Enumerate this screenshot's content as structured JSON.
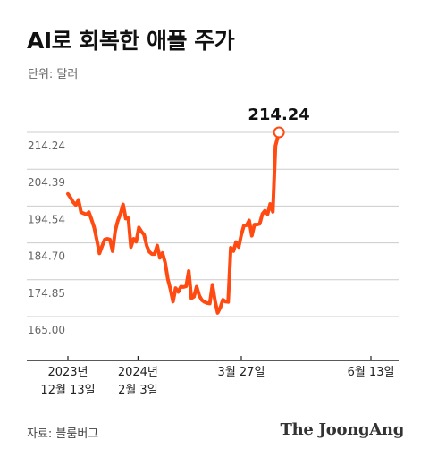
{
  "header": {
    "title": "AI로 회복한 애플 주가",
    "unit": "단위: 달러"
  },
  "footer": {
    "source": "자료: 블룸버그",
    "brand": "The JoongAng"
  },
  "colors": {
    "line": "#ff4a12",
    "grid": "#cccccc",
    "axis": "#222222",
    "tick_text": "#666666"
  },
  "chart_data": {
    "type": "line",
    "title": "AI로 회복한 애플 주가",
    "ylabel": "단위: 달러",
    "ylim": [
      165.0,
      214.24
    ],
    "y_ticks": [
      "214.24",
      "204.39",
      "194.54",
      "184.70",
      "174.85",
      "165.00"
    ],
    "y_tick_values": [
      214.24,
      204.39,
      194.54,
      184.7,
      174.85,
      165.0
    ],
    "x_ticks": [
      {
        "x": 0,
        "lines": [
          "2023년",
          "12월 13일"
        ]
      },
      {
        "x": 80,
        "lines": [
          "2024년",
          "2월 3일"
        ]
      },
      {
        "x": 198,
        "lines": [
          "3월 27일"
        ]
      },
      {
        "x": 346,
        "lines": [
          "6월 13일"
        ]
      }
    ],
    "end_label": "214.24",
    "x_range": [
      0,
      346
    ],
    "series": [
      {
        "values": [
          [
            0,
            197.8
          ],
          [
            3,
            196.8
          ],
          [
            6,
            195.6
          ],
          [
            9,
            194.8
          ],
          [
            12,
            196.2
          ],
          [
            15,
            192.9
          ],
          [
            18,
            192.6
          ],
          [
            21,
            192.3
          ],
          [
            24,
            192.9
          ],
          [
            27,
            190.9
          ],
          [
            30,
            188.8
          ],
          [
            33,
            185.5
          ],
          [
            36,
            181.9
          ],
          [
            39,
            183.8
          ],
          [
            42,
            185.6
          ],
          [
            45,
            185.8
          ],
          [
            48,
            185.6
          ],
          [
            51,
            182.5
          ],
          [
            54,
            187.9
          ],
          [
            57,
            190.6
          ],
          [
            60,
            192.5
          ],
          [
            63,
            195.0
          ],
          [
            66,
            191.2
          ],
          [
            69,
            191.3
          ],
          [
            72,
            183.6
          ],
          [
            75,
            185.8
          ],
          [
            78,
            185.0
          ],
          [
            81,
            188.8
          ],
          [
            84,
            187.7
          ],
          [
            87,
            186.9
          ],
          [
            90,
            183.9
          ],
          [
            93,
            182.3
          ],
          [
            96,
            181.7
          ],
          [
            99,
            181.7
          ],
          [
            102,
            184.0
          ],
          [
            105,
            180.7
          ],
          [
            108,
            182.0
          ],
          [
            111,
            179.4
          ],
          [
            114,
            175.1
          ],
          [
            117,
            172.4
          ],
          [
            120,
            169.0
          ],
          [
            123,
            172.6
          ],
          [
            126,
            171.6
          ],
          [
            129,
            173.0
          ],
          [
            132,
            172.9
          ],
          [
            135,
            173.1
          ],
          [
            138,
            177.2
          ],
          [
            141,
            169.9
          ],
          [
            144,
            170.3
          ],
          [
            147,
            173.0
          ],
          [
            150,
            170.6
          ],
          [
            153,
            169.4
          ],
          [
            156,
            168.9
          ],
          [
            159,
            168.6
          ],
          [
            162,
            168.5
          ],
          [
            165,
            173.5
          ],
          [
            168,
            169.2
          ],
          [
            171,
            166.0
          ],
          [
            174,
            167.4
          ],
          [
            177,
            169.5
          ],
          [
            180,
            169.0
          ],
          [
            183,
            168.9
          ],
          [
            186,
            183.4
          ],
          [
            189,
            182.5
          ],
          [
            192,
            184.9
          ],
          [
            195,
            183.6
          ],
          [
            198,
            186.9
          ],
          [
            201,
            189.3
          ],
          [
            204,
            189.4
          ],
          [
            207,
            190.7
          ],
          [
            210,
            186.6
          ],
          [
            213,
            189.6
          ],
          [
            216,
            189.6
          ],
          [
            219,
            189.8
          ],
          [
            222,
            192.4
          ],
          [
            225,
            193.3
          ],
          [
            228,
            192.4
          ],
          [
            231,
            195.1
          ],
          [
            234,
            193.0
          ],
          [
            237,
            210.6
          ],
          [
            241,
            214.24
          ]
        ]
      }
    ]
  }
}
